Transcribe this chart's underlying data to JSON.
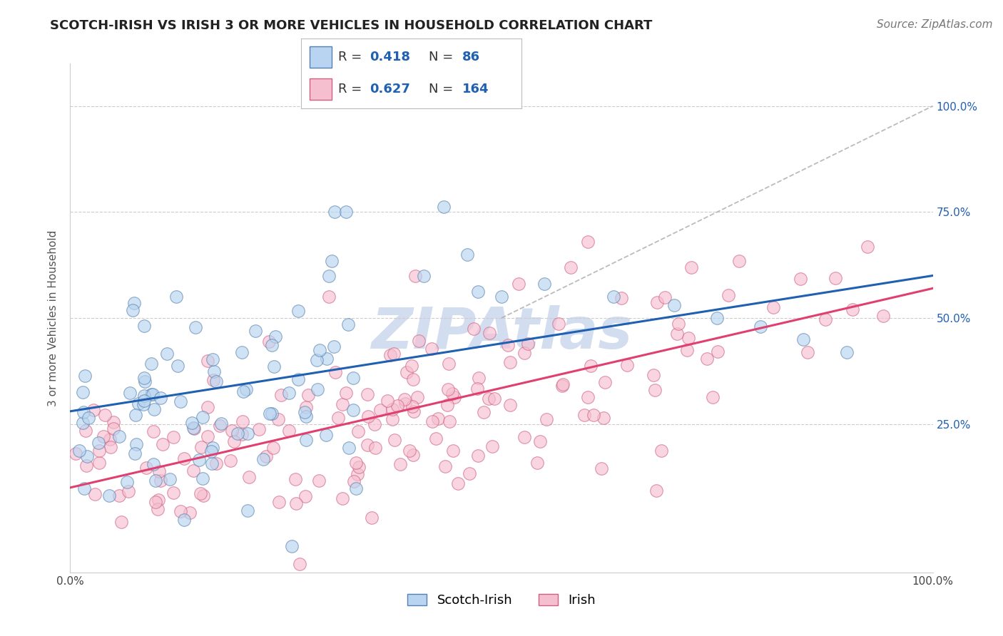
{
  "title": "SCOTCH-IRISH VS IRISH 3 OR MORE VEHICLES IN HOUSEHOLD CORRELATION CHART",
  "source": "Source: ZipAtlas.com",
  "ylabel": "3 or more Vehicles in Household",
  "xlim": [
    0,
    100
  ],
  "ylim": [
    -10,
    110
  ],
  "xticks": [
    0,
    100
  ],
  "xticklabels": [
    "0.0%",
    "100.0%"
  ],
  "yticks": [
    25,
    50,
    75,
    100
  ],
  "yticklabels_right": [
    "25.0%",
    "50.0%",
    "75.0%",
    "100.0%"
  ],
  "grid_color": "#cccccc",
  "background_color": "#ffffff",
  "scotch_irish": {
    "color_fill": "#b8d4f0",
    "color_edge": "#5580b0",
    "R": 0.418,
    "N": 86,
    "line_color": "#2060b0",
    "intercept": 28.0,
    "slope": 0.32
  },
  "irish": {
    "color_fill": "#f5bfd0",
    "color_edge": "#d06080",
    "R": 0.627,
    "N": 164,
    "line_color": "#e04070",
    "intercept": 10.0,
    "slope": 0.47
  },
  "dashed_line_color": "#aaaaaa",
  "watermark": "ZIPAtlas",
  "watermark_color": "#ccd8ee",
  "title_fontsize": 13,
  "axis_label_fontsize": 11,
  "tick_fontsize": 11,
  "source_fontsize": 11
}
